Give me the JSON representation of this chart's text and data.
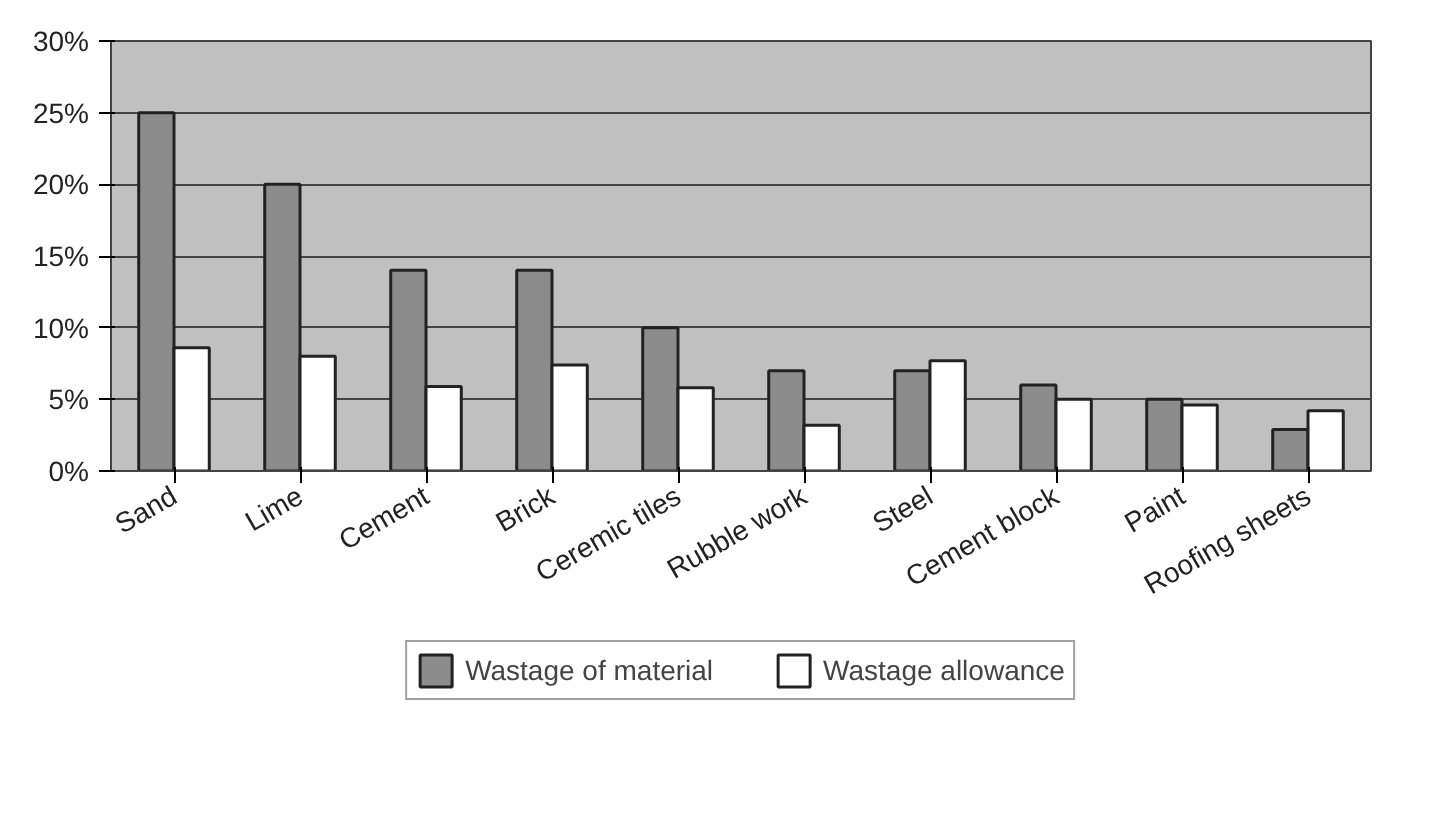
{
  "chart_data": {
    "type": "bar",
    "categories": [
      "Sand",
      "Lime",
      "Cement",
      "Brick",
      "Ceremic tiles",
      "Rubble work",
      "Steel",
      "Cement block",
      "Paint",
      "Roofing sheets"
    ],
    "series": [
      {
        "name": "Wastage of material",
        "color": "#8c8c8c",
        "values": [
          25,
          20,
          14,
          14,
          10,
          7,
          7,
          6,
          5,
          2.9
        ]
      },
      {
        "name": "Wastage allowance",
        "color": "#ffffff",
        "values": [
          8.6,
          8.0,
          5.9,
          7.4,
          5.8,
          3.2,
          7.7,
          5.0,
          4.6,
          4.2
        ]
      }
    ],
    "ylim": [
      0,
      30
    ],
    "yticks": [
      {
        "value": 0,
        "label": "0%"
      },
      {
        "value": 5,
        "label": "5%"
      },
      {
        "value": 10,
        "label": "10%"
      },
      {
        "value": 15,
        "label": "15%"
      },
      {
        "value": 20,
        "label": "20%"
      },
      {
        "value": 25,
        "label": "25%"
      },
      {
        "value": 30,
        "label": "30%"
      }
    ],
    "grid": "y",
    "legend": "bottom"
  }
}
